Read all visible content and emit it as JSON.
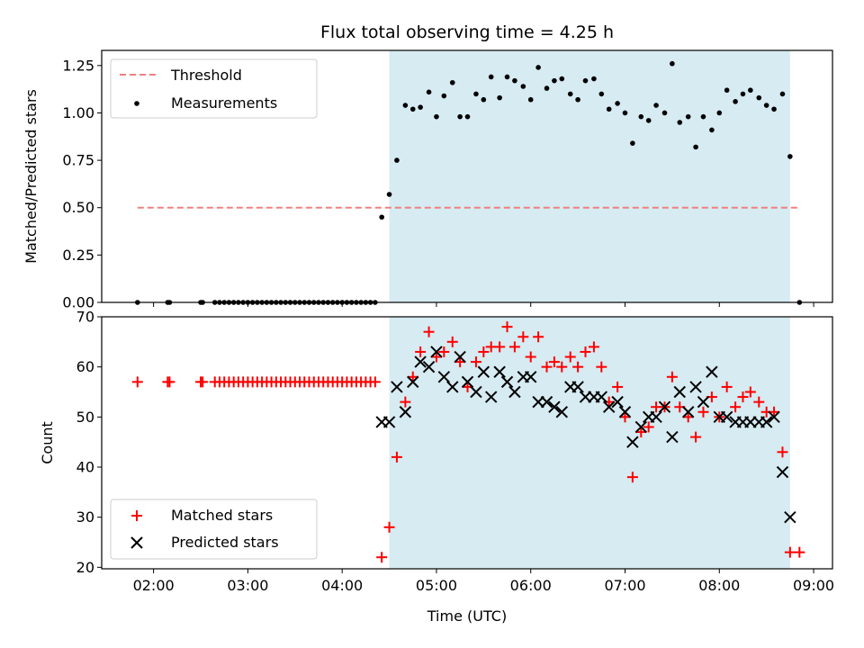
{
  "chart_data": [
    {
      "type": "scatter",
      "title": "Flux total observing time = 4.25 h",
      "xlabel": "",
      "ylabel": "Matched/Predicted stars",
      "xlim": [
        1.45,
        9.2
      ],
      "ylim": [
        0.0,
        1.33
      ],
      "yticks": [
        0.0,
        0.25,
        0.5,
        0.75,
        1.0,
        1.25
      ],
      "ytick_labels": [
        "0.00",
        "0.25",
        "0.50",
        "0.75",
        "1.00",
        "1.25"
      ],
      "grid": false,
      "legend_position": "upper-left",
      "shaded_span": {
        "x0": 4.5,
        "x1": 8.75,
        "color": "#add8e6"
      },
      "threshold": {
        "name": "Threshold",
        "value": 0.5,
        "x0": 1.83,
        "x1": 8.85,
        "color": "#f08080"
      },
      "series": [
        {
          "name": "Measurements",
          "color": "#000000",
          "x": [
            1.83,
            2.15,
            2.17,
            2.5,
            2.52,
            2.65,
            2.7,
            2.75,
            2.8,
            2.85,
            2.9,
            2.95,
            3.0,
            3.05,
            3.1,
            3.15,
            3.2,
            3.25,
            3.3,
            3.35,
            3.4,
            3.45,
            3.5,
            3.55,
            3.6,
            3.65,
            3.7,
            3.75,
            3.8,
            3.85,
            3.9,
            3.95,
            4.0,
            4.05,
            4.1,
            4.15,
            4.2,
            4.25,
            4.3,
            4.35,
            4.42,
            4.5,
            4.58,
            4.67,
            4.75,
            4.83,
            4.92,
            5.0,
            5.08,
            5.17,
            5.25,
            5.33,
            5.42,
            5.5,
            5.58,
            5.67,
            5.75,
            5.83,
            5.92,
            6.0,
            6.08,
            6.17,
            6.25,
            6.33,
            6.42,
            6.5,
            6.58,
            6.67,
            6.75,
            6.83,
            6.92,
            7.0,
            7.08,
            7.17,
            7.25,
            7.33,
            7.42,
            7.5,
            7.58,
            7.67,
            7.75,
            7.83,
            7.92,
            8.0,
            8.08,
            8.17,
            8.25,
            8.33,
            8.42,
            8.5,
            8.58,
            8.67,
            8.75,
            8.85
          ],
          "y": [
            0,
            0,
            0,
            0,
            0,
            0,
            0,
            0,
            0,
            0,
            0,
            0,
            0,
            0,
            0,
            0,
            0,
            0,
            0,
            0,
            0,
            0,
            0,
            0,
            0,
            0,
            0,
            0,
            0,
            0,
            0,
            0,
            0,
            0,
            0,
            0,
            0,
            0,
            0,
            0,
            0.45,
            0.57,
            0.75,
            1.04,
            1.02,
            1.03,
            1.11,
            0.98,
            1.09,
            1.16,
            0.98,
            0.98,
            1.1,
            1.07,
            1.19,
            1.08,
            1.19,
            1.17,
            1.14,
            1.07,
            1.24,
            1.13,
            1.17,
            1.18,
            1.1,
            1.07,
            1.17,
            1.18,
            1.1,
            1.02,
            1.05,
            1.0,
            0.84,
            0.98,
            0.96,
            1.04,
            1.0,
            1.26,
            0.95,
            0.98,
            0.82,
            0.98,
            0.91,
            1.0,
            1.12,
            1.06,
            1.1,
            1.12,
            1.08,
            1.04,
            1.02,
            1.1,
            0.77,
            0
          ]
        }
      ]
    },
    {
      "type": "scatter",
      "title": "",
      "xlabel": "Time (UTC)",
      "ylabel": "Count",
      "xlim": [
        1.45,
        9.2
      ],
      "ylim": [
        19.7,
        70.0
      ],
      "xticks": [
        2,
        3,
        4,
        5,
        6,
        7,
        8,
        9
      ],
      "xtick_labels": [
        "02:00",
        "03:00",
        "04:00",
        "05:00",
        "06:00",
        "07:00",
        "08:00",
        "09:00"
      ],
      "yticks": [
        20,
        30,
        40,
        50,
        60,
        70
      ],
      "ytick_labels": [
        "20",
        "30",
        "40",
        "50",
        "60",
        "70"
      ],
      "grid": false,
      "legend_position": "lower-left",
      "shaded_span": {
        "x0": 4.5,
        "x1": 8.75,
        "color": "#add8e6"
      },
      "series": [
        {
          "name": "Matched stars",
          "marker": "plus",
          "color": "#ff0000",
          "x": [
            1.83,
            2.15,
            2.17,
            2.5,
            2.52,
            2.65,
            2.7,
            2.75,
            2.8,
            2.85,
            2.9,
            2.95,
            3.0,
            3.05,
            3.1,
            3.15,
            3.2,
            3.25,
            3.3,
            3.35,
            3.4,
            3.45,
            3.5,
            3.55,
            3.6,
            3.65,
            3.7,
            3.75,
            3.8,
            3.85,
            3.9,
            3.95,
            4.0,
            4.05,
            4.1,
            4.15,
            4.2,
            4.25,
            4.3,
            4.35,
            4.42,
            4.5,
            4.58,
            4.67,
            4.75,
            4.83,
            4.92,
            5.0,
            5.08,
            5.17,
            5.25,
            5.33,
            5.42,
            5.5,
            5.58,
            5.67,
            5.75,
            5.83,
            5.92,
            6.0,
            6.08,
            6.17,
            6.25,
            6.33,
            6.42,
            6.5,
            6.58,
            6.67,
            6.75,
            6.83,
            6.92,
            7.0,
            7.08,
            7.17,
            7.25,
            7.33,
            7.42,
            7.5,
            7.58,
            7.67,
            7.75,
            7.83,
            7.92,
            8.0,
            8.08,
            8.17,
            8.25,
            8.33,
            8.42,
            8.5,
            8.58,
            8.67,
            8.75,
            8.85
          ],
          "y": [
            57,
            57,
            57,
            57,
            57,
            57,
            57,
            57,
            57,
            57,
            57,
            57,
            57,
            57,
            57,
            57,
            57,
            57,
            57,
            57,
            57,
            57,
            57,
            57,
            57,
            57,
            57,
            57,
            57,
            57,
            57,
            57,
            57,
            57,
            57,
            57,
            57,
            57,
            57,
            57,
            22,
            28,
            42,
            53,
            58,
            63,
            67,
            62,
            63,
            65,
            61,
            56,
            61,
            63,
            64,
            64,
            68,
            64,
            66,
            62,
            66,
            60,
            61,
            60,
            62,
            60,
            63,
            64,
            60,
            53,
            56,
            50,
            38,
            47,
            48,
            52,
            52,
            58,
            52,
            50,
            46,
            51,
            54,
            50,
            56,
            52,
            54,
            55,
            53,
            51,
            51,
            43,
            23,
            23
          ]
        },
        {
          "name": "Predicted stars",
          "marker": "x",
          "color": "#000000",
          "x": [
            4.42,
            4.5,
            4.58,
            4.67,
            4.75,
            4.83,
            4.92,
            5.0,
            5.08,
            5.17,
            5.25,
            5.33,
            5.42,
            5.5,
            5.58,
            5.67,
            5.75,
            5.83,
            5.92,
            6.0,
            6.08,
            6.17,
            6.25,
            6.33,
            6.42,
            6.5,
            6.58,
            6.67,
            6.75,
            6.83,
            6.92,
            7.0,
            7.08,
            7.17,
            7.25,
            7.33,
            7.42,
            7.5,
            7.58,
            7.67,
            7.75,
            7.83,
            7.92,
            8.0,
            8.08,
            8.17,
            8.25,
            8.33,
            8.42,
            8.5,
            8.58,
            8.67,
            8.75
          ],
          "y": [
            49,
            49,
            56,
            51,
            57,
            61,
            60,
            63,
            58,
            56,
            62,
            57,
            55,
            59,
            54,
            59,
            57,
            55,
            58,
            58,
            53,
            53,
            52,
            51,
            56,
            56,
            54,
            54,
            54,
            52,
            53,
            51,
            45,
            48,
            50,
            50,
            52,
            46,
            55,
            51,
            56,
            53,
            59,
            50,
            50,
            49,
            49,
            49,
            49,
            49,
            50,
            39,
            30
          ]
        }
      ]
    }
  ]
}
